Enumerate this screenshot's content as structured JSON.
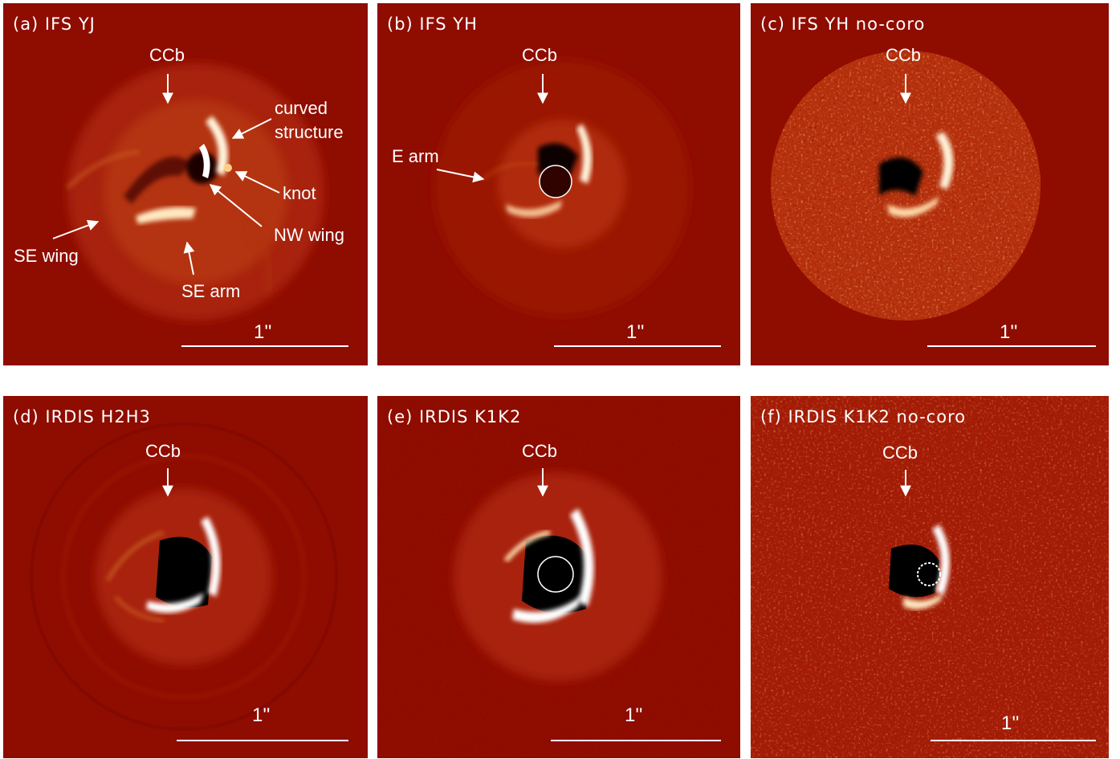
{
  "panels": [
    {
      "title": "(a) IFS YJ",
      "scale": "1''",
      "labels": {
        "ccb": "CCb",
        "curved": "curved\nstructure",
        "knot": "knot",
        "nw_wing": "NW wing",
        "se_wing": "SE wing",
        "se_arm": "SE arm"
      }
    },
    {
      "title": "(b) IFS YH",
      "scale": "1''",
      "labels": {
        "ccb": "CCb",
        "e_arm": "E arm"
      }
    },
    {
      "title": "(c) IFS YH no-coro",
      "scale": "1''",
      "labels": {
        "ccb": "CCb"
      }
    },
    {
      "title": "(d) IRDIS H2H3",
      "scale": "1''",
      "labels": {
        "ccb": "CCb"
      }
    },
    {
      "title": "(e) IRDIS K1K2",
      "scale": "1''",
      "labels": {
        "ccb": "CCb"
      }
    },
    {
      "title": "(f) IRDIS K1K2 no-coro",
      "scale": "1''",
      "labels": {
        "ccb": "CCb"
      }
    }
  ],
  "colors": {
    "background": "#8f0c00",
    "text": "#ffffff",
    "bright": "#fff2d8",
    "dark": "#000000"
  }
}
